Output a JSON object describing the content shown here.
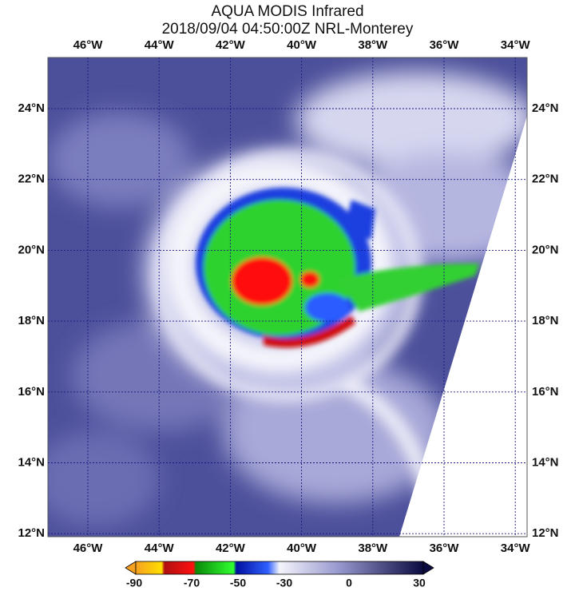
{
  "header": {
    "title": "AQUA MODIS Infrared",
    "subtitle": "2018/09/04 04:50:00Z NRL-Monterey"
  },
  "map": {
    "lon_labels": [
      "46°W",
      "44°W",
      "42°W",
      "40°W",
      "38°W",
      "36°W",
      "34°W"
    ],
    "lat_labels": [
      "24°N",
      "22°N",
      "20°N",
      "18°N",
      "16°N",
      "14°N",
      "12°N"
    ]
  },
  "colorbar": {
    "ticks": [
      -90,
      -70,
      -50,
      -30,
      0,
      30
    ]
  }
}
